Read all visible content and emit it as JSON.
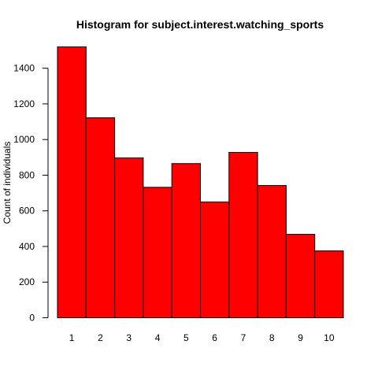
{
  "chart_data": {
    "type": "bar",
    "title": "Histogram for subject.interest.watching_sports",
    "xlabel": "",
    "ylabel": "Count of individuals",
    "categories": [
      "1",
      "2",
      "3",
      "4",
      "5",
      "6",
      "7",
      "8",
      "9",
      "10"
    ],
    "values": [
      1520,
      1122,
      897,
      732,
      865,
      650,
      928,
      742,
      468,
      375
    ],
    "ylim": [
      0,
      1520
    ],
    "yticks": [
      "0",
      "200",
      "400",
      "600",
      "800",
      "1000",
      "1200",
      "1400"
    ],
    "bar_color": "#ff0000",
    "edge_color": "#000000",
    "grid": false
  }
}
